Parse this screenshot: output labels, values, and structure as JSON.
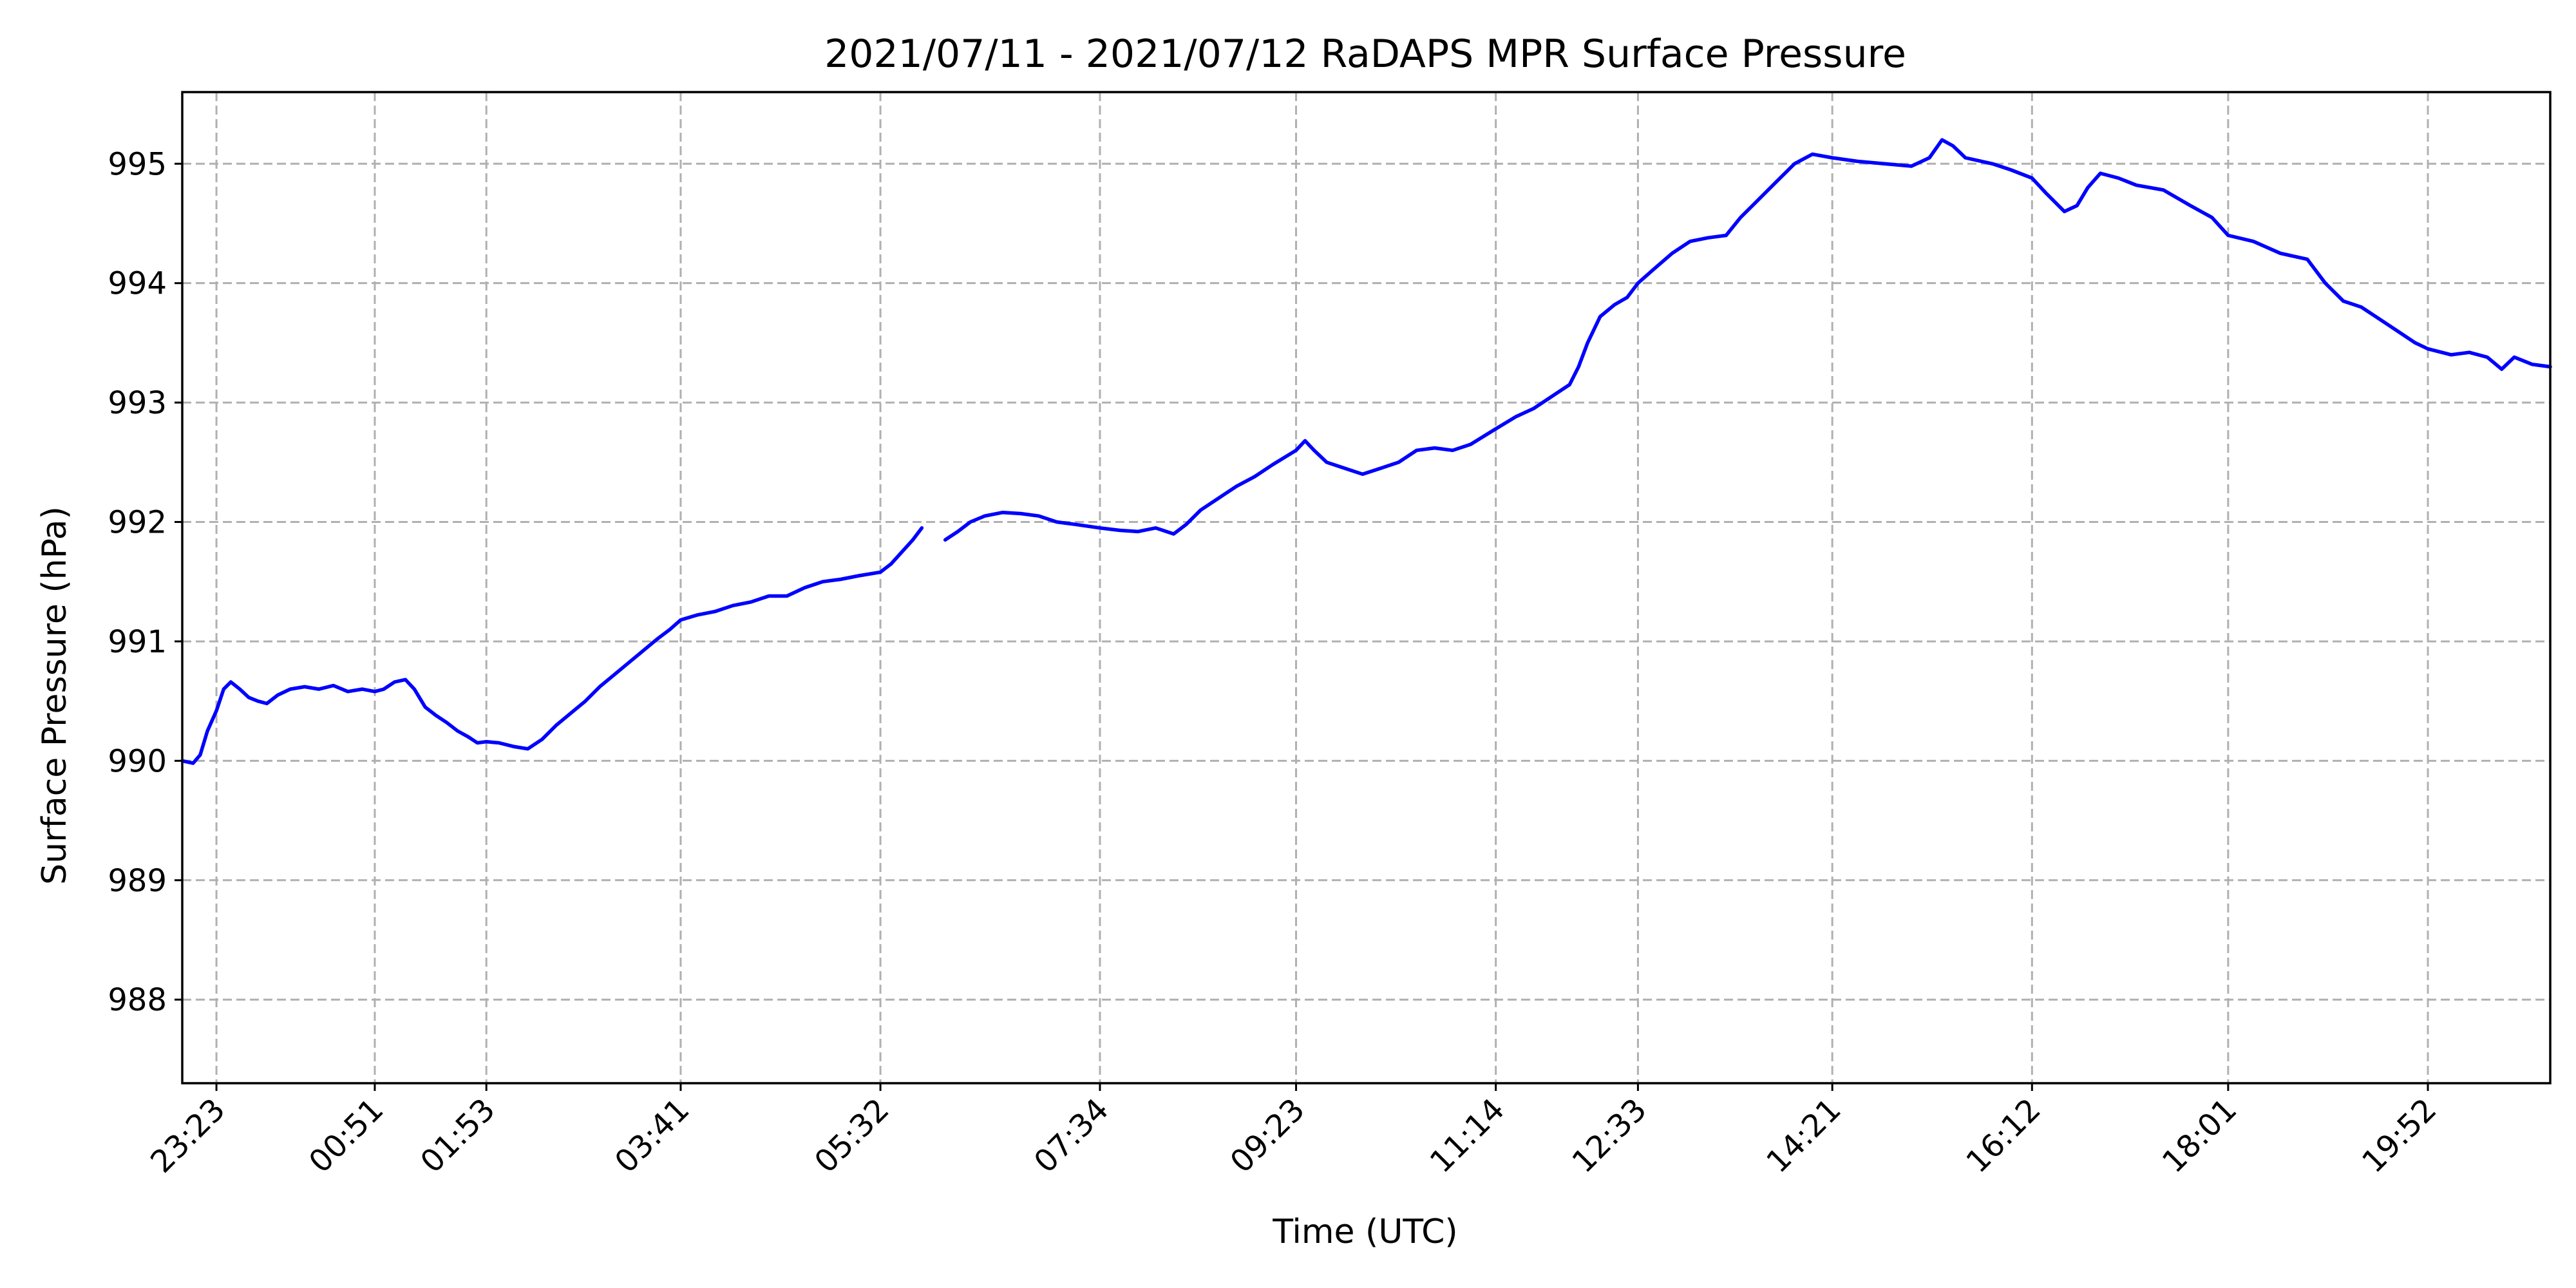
{
  "chart_data": {
    "type": "line",
    "title": "2021/07/11 - 2021/07/12 RaDAPS MPR Surface Pressure",
    "xlabel": "Time (UTC)",
    "ylabel": "Surface Pressure (hPa)",
    "x_axis": {
      "kind": "time",
      "range": [
        "2021/07/11 23:04",
        "2021/07/12 21:00"
      ],
      "tick_labels": [
        "23:23",
        "00:51",
        "01:53",
        "03:41",
        "05:32",
        "07:34",
        "09:23",
        "11:14",
        "12:33",
        "14:21",
        "16:12",
        "18:01",
        "19:52"
      ],
      "tick_label_rotation_deg": 45
    },
    "y_axis": {
      "range": [
        987.3,
        995.6
      ],
      "ticks": [
        988,
        989,
        990,
        991,
        992,
        993,
        994,
        995
      ]
    },
    "grid": true,
    "series": [
      {
        "color": "#0000ff",
        "segments": [
          [
            [
              "2021/07/11 23:04",
              990.0
            ],
            [
              "2021/07/11 23:10",
              989.98
            ],
            [
              "2021/07/11 23:14",
              990.05
            ],
            [
              "2021/07/11 23:18",
              990.25
            ],
            [
              "2021/07/11 23:23",
              990.42
            ],
            [
              "2021/07/11 23:27",
              990.6
            ],
            [
              "2021/07/11 23:31",
              990.66
            ],
            [
              "2021/07/11 23:36",
              990.6
            ],
            [
              "2021/07/11 23:41",
              990.53
            ],
            [
              "2021/07/11 23:46",
              990.5
            ],
            [
              "2021/07/11 23:51",
              990.48
            ],
            [
              "2021/07/11 23:57",
              990.55
            ],
            [
              "2021/07/12 00:04",
              990.6
            ],
            [
              "2021/07/12 00:12",
              990.62
            ],
            [
              "2021/07/12 00:20",
              990.6
            ],
            [
              "2021/07/12 00:28",
              990.63
            ],
            [
              "2021/07/12 00:36",
              990.58
            ],
            [
              "2021/07/12 00:44",
              990.6
            ],
            [
              "2021/07/12 00:51",
              990.58
            ],
            [
              "2021/07/12 00:56",
              990.6
            ],
            [
              "2021/07/12 01:02",
              990.66
            ],
            [
              "2021/07/12 01:08",
              990.68
            ],
            [
              "2021/07/12 01:13",
              990.6
            ],
            [
              "2021/07/12 01:19",
              990.45
            ],
            [
              "2021/07/12 01:25",
              990.38
            ],
            [
              "2021/07/12 01:31",
              990.32
            ],
            [
              "2021/07/12 01:37",
              990.25
            ],
            [
              "2021/07/12 01:43",
              990.2
            ],
            [
              "2021/07/12 01:48",
              990.15
            ],
            [
              "2021/07/12 01:53",
              990.16
            ],
            [
              "2021/07/12 02:00",
              990.15
            ],
            [
              "2021/07/12 02:08",
              990.12
            ],
            [
              "2021/07/12 02:16",
              990.1
            ],
            [
              "2021/07/12 02:24",
              990.18
            ],
            [
              "2021/07/12 02:32",
              990.3
            ],
            [
              "2021/07/12 02:40",
              990.4
            ],
            [
              "2021/07/12 02:48",
              990.5
            ],
            [
              "2021/07/12 02:56",
              990.62
            ],
            [
              "2021/07/12 03:04",
              990.72
            ],
            [
              "2021/07/12 03:12",
              990.82
            ],
            [
              "2021/07/12 03:20",
              990.92
            ],
            [
              "2021/07/12 03:28",
              991.02
            ],
            [
              "2021/07/12 03:35",
              991.1
            ],
            [
              "2021/07/12 03:41",
              991.18
            ],
            [
              "2021/07/12 03:50",
              991.22
            ],
            [
              "2021/07/12 04:00",
              991.25
            ],
            [
              "2021/07/12 04:10",
              991.3
            ],
            [
              "2021/07/12 04:20",
              991.33
            ],
            [
              "2021/07/12 04:30",
              991.38
            ],
            [
              "2021/07/12 04:40",
              991.38
            ],
            [
              "2021/07/12 04:50",
              991.45
            ],
            [
              "2021/07/12 05:00",
              991.5
            ],
            [
              "2021/07/12 05:10",
              991.52
            ],
            [
              "2021/07/12 05:20",
              991.55
            ],
            [
              "2021/07/12 05:32",
              991.58
            ],
            [
              "2021/07/12 05:38",
              991.65
            ],
            [
              "2021/07/12 05:44",
              991.75
            ],
            [
              "2021/07/12 05:50",
              991.85
            ],
            [
              "2021/07/12 05:55",
              991.95
            ]
          ],
          [
            [
              "2021/07/12 06:08",
              991.85
            ],
            [
              "2021/07/12 06:15",
              991.92
            ],
            [
              "2021/07/12 06:22",
              992.0
            ],
            [
              "2021/07/12 06:30",
              992.05
            ],
            [
              "2021/07/12 06:40",
              992.08
            ],
            [
              "2021/07/12 06:50",
              992.07
            ],
            [
              "2021/07/12 07:00",
              992.05
            ],
            [
              "2021/07/12 07:10",
              992.0
            ],
            [
              "2021/07/12 07:20",
              991.98
            ],
            [
              "2021/07/12 07:34",
              991.95
            ],
            [
              "2021/07/12 07:45",
              991.93
            ],
            [
              "2021/07/12 07:55",
              991.92
            ],
            [
              "2021/07/12 08:05",
              991.95
            ],
            [
              "2021/07/12 08:15",
              991.9
            ],
            [
              "2021/07/12 08:22",
              991.98
            ],
            [
              "2021/07/12 08:30",
              992.1
            ],
            [
              "2021/07/12 08:40",
              992.2
            ],
            [
              "2021/07/12 08:50",
              992.3
            ],
            [
              "2021/07/12 09:00",
              992.38
            ],
            [
              "2021/07/12 09:10",
              992.48
            ],
            [
              "2021/07/12 09:23",
              992.6
            ],
            [
              "2021/07/12 09:28",
              992.68
            ],
            [
              "2021/07/12 09:33",
              992.6
            ],
            [
              "2021/07/12 09:40",
              992.5
            ],
            [
              "2021/07/12 09:50",
              992.45
            ],
            [
              "2021/07/12 10:00",
              992.4
            ],
            [
              "2021/07/12 10:10",
              992.45
            ],
            [
              "2021/07/12 10:20",
              992.5
            ],
            [
              "2021/07/12 10:30",
              992.6
            ],
            [
              "2021/07/12 10:40",
              992.62
            ],
            [
              "2021/07/12 10:50",
              992.6
            ],
            [
              "2021/07/12 11:00",
              992.65
            ],
            [
              "2021/07/12 11:14",
              992.78
            ],
            [
              "2021/07/12 11:25",
              992.88
            ],
            [
              "2021/07/12 11:35",
              992.95
            ],
            [
              "2021/07/12 11:45",
              993.05
            ],
            [
              "2021/07/12 11:55",
              993.15
            ],
            [
              "2021/07/12 12:00",
              993.3
            ],
            [
              "2021/07/12 12:05",
              993.5
            ],
            [
              "2021/07/12 12:12",
              993.72
            ],
            [
              "2021/07/12 12:20",
              993.82
            ],
            [
              "2021/07/12 12:27",
              993.88
            ],
            [
              "2021/07/12 12:33",
              994.0
            ],
            [
              "2021/07/12 12:42",
              994.12
            ],
            [
              "2021/07/12 12:52",
              994.25
            ],
            [
              "2021/07/12 13:02",
              994.35
            ],
            [
              "2021/07/12 13:12",
              994.38
            ],
            [
              "2021/07/12 13:22",
              994.4
            ],
            [
              "2021/07/12 13:30",
              994.55
            ],
            [
              "2021/07/12 13:40",
              994.7
            ],
            [
              "2021/07/12 13:50",
              994.85
            ],
            [
              "2021/07/12 14:00",
              995.0
            ],
            [
              "2021/07/12 14:10",
              995.08
            ],
            [
              "2021/07/12 14:21",
              995.05
            ],
            [
              "2021/07/12 14:35",
              995.02
            ],
            [
              "2021/07/12 14:50",
              995.0
            ],
            [
              "2021/07/12 15:05",
              994.98
            ],
            [
              "2021/07/12 15:15",
              995.05
            ],
            [
              "2021/07/12 15:22",
              995.2
            ],
            [
              "2021/07/12 15:28",
              995.15
            ],
            [
              "2021/07/12 15:35",
              995.05
            ],
            [
              "2021/07/12 15:50",
              995.0
            ],
            [
              "2021/07/12 16:00",
              994.95
            ],
            [
              "2021/07/12 16:12",
              994.88
            ],
            [
              "2021/07/12 16:20",
              994.75
            ],
            [
              "2021/07/12 16:30",
              994.6
            ],
            [
              "2021/07/12 16:37",
              994.65
            ],
            [
              "2021/07/12 16:43",
              994.8
            ],
            [
              "2021/07/12 16:50",
              994.92
            ],
            [
              "2021/07/12 17:00",
              994.88
            ],
            [
              "2021/07/12 17:10",
              994.82
            ],
            [
              "2021/07/12 17:25",
              994.78
            ],
            [
              "2021/07/12 17:40",
              994.65
            ],
            [
              "2021/07/12 17:52",
              994.55
            ],
            [
              "2021/07/12 18:01",
              994.4
            ],
            [
              "2021/07/12 18:15",
              994.35
            ],
            [
              "2021/07/12 18:30",
              994.25
            ],
            [
              "2021/07/12 18:45",
              994.2
            ],
            [
              "2021/07/12 18:55",
              994.0
            ],
            [
              "2021/07/12 19:05",
              993.85
            ],
            [
              "2021/07/12 19:15",
              993.8
            ],
            [
              "2021/07/12 19:25",
              993.7
            ],
            [
              "2021/07/12 19:35",
              993.6
            ],
            [
              "2021/07/12 19:45",
              993.5
            ],
            [
              "2021/07/12 19:52",
              993.45
            ],
            [
              "2021/07/12 20:05",
              993.4
            ],
            [
              "2021/07/12 20:15",
              993.42
            ],
            [
              "2021/07/12 20:25",
              993.38
            ],
            [
              "2021/07/12 20:33",
              993.28
            ],
            [
              "2021/07/12 20:40",
              993.38
            ],
            [
              "2021/07/12 20:50",
              993.32
            ],
            [
              "2021/07/12 21:00",
              993.3
            ]
          ]
        ]
      }
    ]
  }
}
